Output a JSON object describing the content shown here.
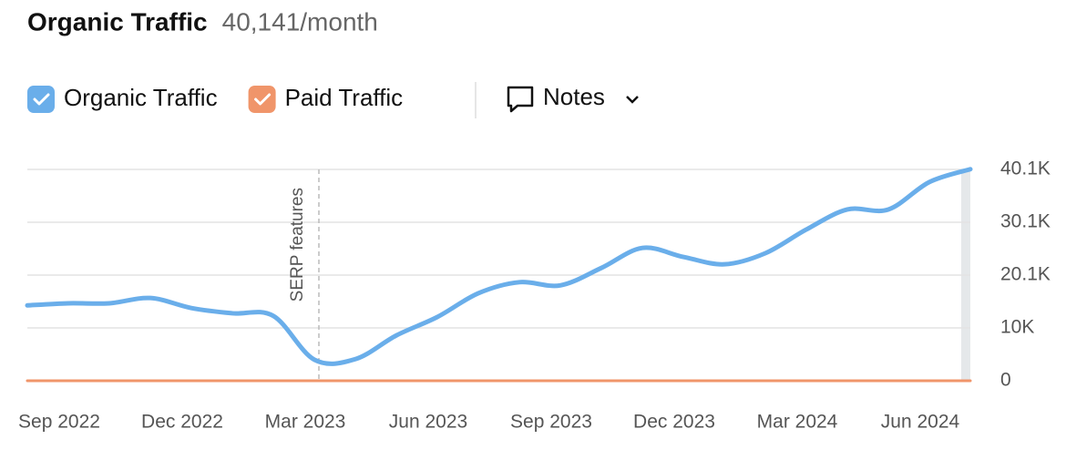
{
  "chart_data": {
    "type": "line",
    "title": "Organic Traffic",
    "subtitle": "40,141/month",
    "notes_label": "Notes",
    "annotation": "SERP features",
    "categories": [
      null,
      "Sep 2022",
      null,
      null,
      "Dec 2022",
      null,
      null,
      "Mar 2023",
      null,
      null,
      "Jun 2023",
      null,
      null,
      "Sep 2023",
      null,
      null,
      "Dec 2023",
      null,
      null,
      "Mar 2024",
      null,
      null,
      "Jun 2024",
      null
    ],
    "series": [
      {
        "name": "Organic Traffic",
        "color": "#6aaeea",
        "values": [
          14300,
          14700,
          14700,
          15700,
          13800,
          12800,
          12300,
          4000,
          4100,
          8600,
          12100,
          16600,
          18700,
          18100,
          21400,
          25200,
          23500,
          22100,
          24200,
          28700,
          32500,
          32500,
          37700,
          40141
        ]
      },
      {
        "name": "Paid Traffic",
        "color": "#f0956a",
        "values": [
          0,
          0,
          0,
          0,
          0,
          0,
          0,
          0,
          0,
          0,
          0,
          0,
          0,
          0,
          0,
          0,
          0,
          0,
          0,
          0,
          0,
          0,
          0,
          0
        ]
      }
    ],
    "ylim": [
      0,
      40100
    ],
    "yticks": [
      0,
      {
        "value": 10025,
        "label": "10K"
      },
      {
        "value": 20050,
        "label": "20.1K"
      },
      {
        "value": 30075,
        "label": "30.1K"
      },
      {
        "value": 40100,
        "label": "40.1K"
      }
    ],
    "grid": true
  }
}
